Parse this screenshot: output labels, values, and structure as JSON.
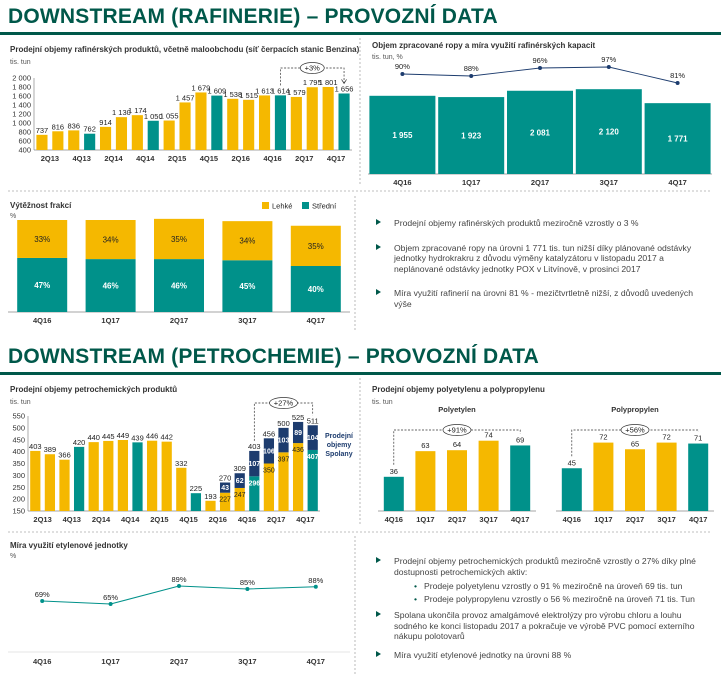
{
  "refinery": {
    "title": "DOWNSTREAM (RAFINERIE) – PROVOZNÍ DATA",
    "sales_chart": {
      "title": "Prodejní objemy rafinérských produktů, včetně maloobchodu (síť čerpacích stanic Benzina)",
      "unit": "tis. tun",
      "growth_label": "+3%",
      "chart_data": {
        "type": "bar",
        "ylim": [
          400,
          2000
        ],
        "yticks": [
          "400",
          "600",
          "800",
          "1 000",
          "1 200",
          "1 400",
          "1 600",
          "1 800",
          "2 000"
        ],
        "x_labels": [
          "2Q13",
          "4Q13",
          "2Q14",
          "4Q14",
          "2Q15",
          "4Q15",
          "2Q16",
          "4Q16",
          "2Q17",
          "4Q17"
        ],
        "values": [
          737,
          816,
          836,
          762,
          914,
          1130,
          1174,
          1050,
          1055,
          1457,
          1679,
          1609,
          1538,
          1515,
          1613,
          1614,
          1579,
          1795,
          1801,
          1656
        ],
        "value_labels": [
          "737",
          "816",
          "836",
          "762",
          "914",
          "1 130",
          "1 174",
          "1 050",
          "1 055",
          "1 457",
          "1 679",
          "1 609",
          "1 538",
          "1 515",
          "1 613",
          "1 614",
          "1 579",
          "1 795",
          "1 801",
          "1 656"
        ],
        "colors": [
          "y",
          "y",
          "y",
          "g",
          "y",
          "y",
          "y",
          "g",
          "y",
          "y",
          "y",
          "g",
          "y",
          "y",
          "y",
          "g",
          "y",
          "y",
          "y",
          "g"
        ]
      }
    },
    "crude_chart": {
      "title": "Objem zpracované ropy a míra využití rafinérských kapacit",
      "unit": "tis. tun, %",
      "chart_data": {
        "type": "bar",
        "categories": [
          "4Q16",
          "1Q17",
          "2Q17",
          "3Q17",
          "4Q17"
        ],
        "values": [
          1955,
          1923,
          2081,
          2120,
          1771
        ],
        "value_labels": [
          "1 955",
          "1 923",
          "2 081",
          "2 120",
          "1 771"
        ],
        "utilization": [
          90,
          88,
          96,
          97,
          81
        ],
        "utilization_labels": [
          "90%",
          "88%",
          "96%",
          "97%",
          "81%"
        ]
      }
    },
    "yield_chart": {
      "title": "Výtěžnost frakcí",
      "unit": "%",
      "legend": [
        "Lehké",
        "Střední"
      ],
      "chart_data": {
        "type": "bar",
        "categories": [
          "4Q16",
          "1Q17",
          "2Q17",
          "3Q17",
          "4Q17"
        ],
        "series": [
          {
            "name": "Střední",
            "values": [
              47,
              46,
              46,
              45,
              40
            ],
            "labels": [
              "47%",
              "46%",
              "46%",
              "45%",
              "40%"
            ]
          },
          {
            "name": "Lehké",
            "values": [
              33,
              34,
              35,
              34,
              35
            ],
            "labels": [
              "33%",
              "34%",
              "35%",
              "34%",
              "35%"
            ]
          }
        ]
      }
    },
    "bullets": [
      "Prodejní objemy rafinérských produktů meziročně vzrostly o 3 %",
      "Objem zpracované ropy na úrovni 1 771 tis. tun nižší díky plánované odstávky jednotky hydrokrakru z důvodu výměny katalyzátoru v listopadu 2017 a neplánované odstávky jednotky POX v Litvínově, v prosinci 2017",
      "Míra využití rafinerií na úrovni 81 % - mezičtvrtletně nižší, z důvodů uvedených výše"
    ]
  },
  "petrochem": {
    "title": "DOWNSTREAM (PETROCHEMIE) – PROVOZNÍ DATA",
    "sales_chart": {
      "title": "Prodejní objemy petrochemických produktů",
      "unit": "tis. tun",
      "growth_label": "+27%",
      "spolana_label": [
        "Prodejní",
        "objemy",
        "Spolany"
      ],
      "chart_data": {
        "type": "bar",
        "ylim": [
          150,
          550
        ],
        "yticks": [
          "150",
          "200",
          "250",
          "300",
          "350",
          "400",
          "450",
          "500",
          "550"
        ],
        "x_labels": [
          "2Q13",
          "4Q13",
          "2Q14",
          "4Q14",
          "2Q15",
          "4Q15",
          "2Q16",
          "4Q16",
          "2Q17",
          "4Q17"
        ],
        "values": [
          403,
          389,
          366,
          420,
          440,
          445,
          449,
          439,
          446,
          442,
          332,
          225,
          193,
          227,
          247,
          296,
          350,
          397,
          436,
          407
        ],
        "value_labels": [
          "403",
          "389",
          "366",
          "420",
          "440",
          "445",
          "449",
          "439",
          "446",
          "442",
          "332",
          "225",
          "193",
          "227",
          "247",
          "296",
          "350",
          "397",
          "436",
          "407"
        ],
        "colors": [
          "y",
          "y",
          "y",
          "g",
          "y",
          "y",
          "y",
          "g",
          "y",
          "y",
          "y",
          "g",
          "y",
          "y",
          "y",
          "g",
          "y",
          "y",
          "y",
          "g"
        ],
        "spolana": [
          0,
          0,
          0,
          0,
          0,
          0,
          0,
          0,
          0,
          0,
          0,
          0,
          0,
          43,
          62,
          107,
          106,
          103,
          89,
          104
        ],
        "totals": [
          0,
          0,
          0,
          0,
          0,
          0,
          0,
          0,
          0,
          0,
          0,
          0,
          0,
          270,
          309,
          403,
          456,
          500,
          525,
          511
        ],
        "total_labels": [
          "",
          "",
          "",
          "",
          "",
          "",
          "",
          "",
          "",
          "",
          "",
          "",
          "",
          "270",
          "309",
          "403",
          "456",
          "500",
          "525",
          "511"
        ]
      }
    },
    "pe_pp_chart": {
      "title": "Prodejní objemy polyetylenu a polypropylenu",
      "unit": "tis. tun",
      "pe_label": "Polyetylen",
      "pp_label": "Polypropylen",
      "pe_growth": "+91%",
      "pp_growth": "+56%",
      "chart_data": {
        "type": "bar",
        "categories": [
          "4Q16",
          "1Q17",
          "2Q17",
          "3Q17",
          "4Q17"
        ],
        "series": [
          {
            "name": "Polyetylen",
            "values": [
              36,
              63,
              64,
              74,
              69
            ]
          },
          {
            "name": "Polypropylen",
            "values": [
              45,
              72,
              65,
              72,
              71
            ]
          }
        ]
      }
    },
    "ethylene_chart": {
      "title": "Míra využití etylenové jednotky",
      "unit": "%",
      "chart_data": {
        "type": "line",
        "categories": [
          "4Q16",
          "1Q17",
          "2Q17",
          "3Q17",
          "4Q17"
        ],
        "values": [
          69,
          65,
          89,
          85,
          88
        ],
        "labels": [
          "69%",
          "65%",
          "89%",
          "85%",
          "88%"
        ]
      }
    },
    "bullets": {
      "b1": "Prodejní objemy petrochemických produktů meziročně vzrostly o 27% díky plné dostupnosti petrochemických aktiv:",
      "sub1": "Prodeje polyetylenu vzrostly o 91 % meziročně na úroveň 69 tis. tun",
      "sub2": "Prodeje polypropylenu vzrostly o 56 % meziročně na úroveň 71 tis. Tun",
      "b2": "Spolana ukončila provoz amalgámové elektrolýzy pro výrobu chloru a louhu sodného ke konci listopadu 2017 a pokračuje ve výrobě PVC pomocí externího nákupu polotovarů",
      "b3": "Míra využití etylenové jednotky na úrovni 88 %"
    }
  },
  "colors": {
    "yellow": "#f5b800",
    "green": "#00918a",
    "navy": "#1d3c6e",
    "text": "#333333",
    "title": "#00584a"
  }
}
